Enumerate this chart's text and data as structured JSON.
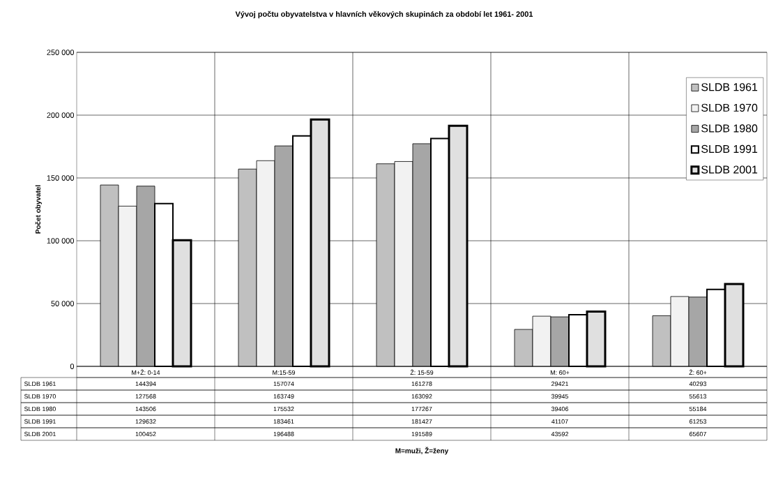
{
  "chart_data": {
    "type": "bar",
    "title": "Vývoj počtu obyvatelstva v hlavních věkových skupinách za období let 1961- 2001",
    "annotations": [
      "M=muži,  Ž=ženy"
    ],
    "ylabel": "Počet obyvatel",
    "categories": [
      "M+Ž: 0-14",
      "M:15-59",
      "Ž: 15-59",
      "M: 60+",
      "Ž: 60+"
    ],
    "series": [
      {
        "name": "SLDB 1961",
        "color": "#c0c0c0",
        "values": [
          144394,
          157074,
          161278,
          29421,
          40293
        ]
      },
      {
        "name": "SLDB 1970",
        "color": "#f2f2f2",
        "values": [
          127568,
          163749,
          163092,
          39945,
          55613
        ]
      },
      {
        "name": "SLDB 1980",
        "color": "#a6a6a6",
        "values": [
          143506,
          175532,
          177267,
          39406,
          55184
        ]
      },
      {
        "name": "SLDB 1991",
        "color": "#ffffff",
        "values": [
          129632,
          183461,
          181427,
          41107,
          61253
        ]
      },
      {
        "name": "SLDB 2001",
        "color": "#e0e0e0",
        "values": [
          100452,
          196488,
          191589,
          43592,
          65607
        ]
      }
    ],
    "ylim": [
      0,
      250000
    ],
    "yticks": [
      {
        "value": 0,
        "label": "0"
      },
      {
        "value": 50000,
        "label": "50 000"
      },
      {
        "value": 100000,
        "label": "100 000"
      },
      {
        "value": 150000,
        "label": "150 000"
      },
      {
        "value": 200000,
        "label": "200 000"
      },
      {
        "value": 250000,
        "label": "250 000"
      }
    ],
    "grid": true,
    "legend": "top right",
    "data_labels": true
  }
}
